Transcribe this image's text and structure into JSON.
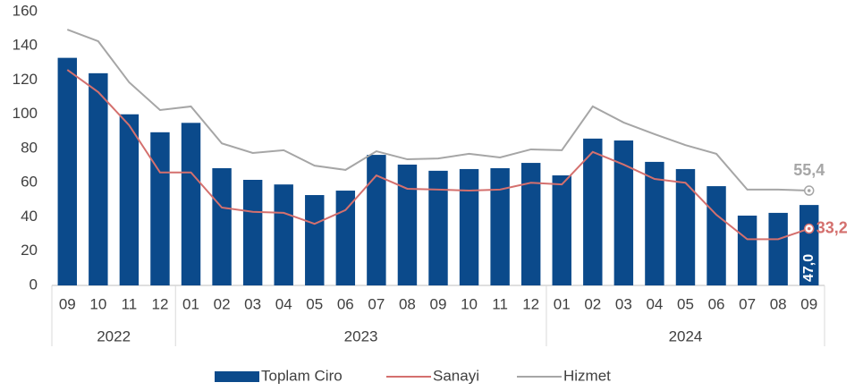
{
  "chart_data": {
    "type": "bar",
    "categories": [
      "09",
      "10",
      "11",
      "12",
      "01",
      "02",
      "03",
      "04",
      "05",
      "06",
      "07",
      "08",
      "09",
      "10",
      "11",
      "12",
      "01",
      "02",
      "03",
      "04",
      "05",
      "06",
      "07",
      "08",
      "09"
    ],
    "category_groups": [
      "2022",
      "2022",
      "2022",
      "2022",
      "2023",
      "2023",
      "2023",
      "2023",
      "2023",
      "2023",
      "2023",
      "2023",
      "2023",
      "2023",
      "2023",
      "2023",
      "2024",
      "2024",
      "2024",
      "2024",
      "2024",
      "2024",
      "2024",
      "2024",
      "2024"
    ],
    "series": [
      {
        "name": "Toplam Ciro",
        "type": "bar",
        "color": "#0b4a8b",
        "values": [
          133,
          124,
          100,
          89.5,
          95,
          68.5,
          61.7,
          59,
          52.8,
          55.4,
          76.3,
          70.6,
          67,
          68,
          68.5,
          71.6,
          64.3,
          85.8,
          84.7,
          72.2,
          68,
          58,
          40.8,
          42.4,
          47.0
        ],
        "value_labels": [
          null,
          null,
          null,
          null,
          null,
          null,
          null,
          null,
          null,
          null,
          null,
          null,
          null,
          null,
          null,
          null,
          null,
          null,
          null,
          null,
          null,
          null,
          null,
          null,
          "47,0"
        ]
      },
      {
        "name": "Sanayi",
        "type": "line",
        "color": "#d4706e",
        "values": [
          126,
          113,
          93.6,
          66,
          66,
          45.5,
          43,
          42.4,
          36,
          44,
          64.3,
          56.5,
          56,
          55.4,
          56,
          60,
          59,
          78,
          70.6,
          62.2,
          60,
          41.3,
          27,
          27,
          33.2
        ],
        "value_labels": [
          null,
          null,
          null,
          null,
          null,
          null,
          null,
          null,
          null,
          null,
          null,
          null,
          null,
          null,
          null,
          null,
          null,
          null,
          null,
          null,
          null,
          null,
          null,
          null,
          "33,2"
        ]
      },
      {
        "name": "Hizmet",
        "type": "line",
        "color": "#a6a6a6",
        "values": [
          149.5,
          142.7,
          118.7,
          102.5,
          104.6,
          83,
          77.4,
          79,
          70,
          67.5,
          78.4,
          73.7,
          74.2,
          76.9,
          74.8,
          79.5,
          79,
          104.6,
          95.2,
          88.4,
          82,
          76.9,
          56,
          56,
          55.4
        ],
        "value_labels": [
          null,
          null,
          null,
          null,
          null,
          null,
          null,
          null,
          null,
          null,
          null,
          null,
          null,
          null,
          null,
          null,
          null,
          null,
          null,
          null,
          null,
          null,
          null,
          null,
          "55,4"
        ]
      }
    ],
    "ylim": [
      0,
      160
    ],
    "yticks": [
      0,
      20,
      40,
      60,
      80,
      100,
      120,
      140,
      160
    ],
    "grid": false,
    "legend": "bottom"
  }
}
